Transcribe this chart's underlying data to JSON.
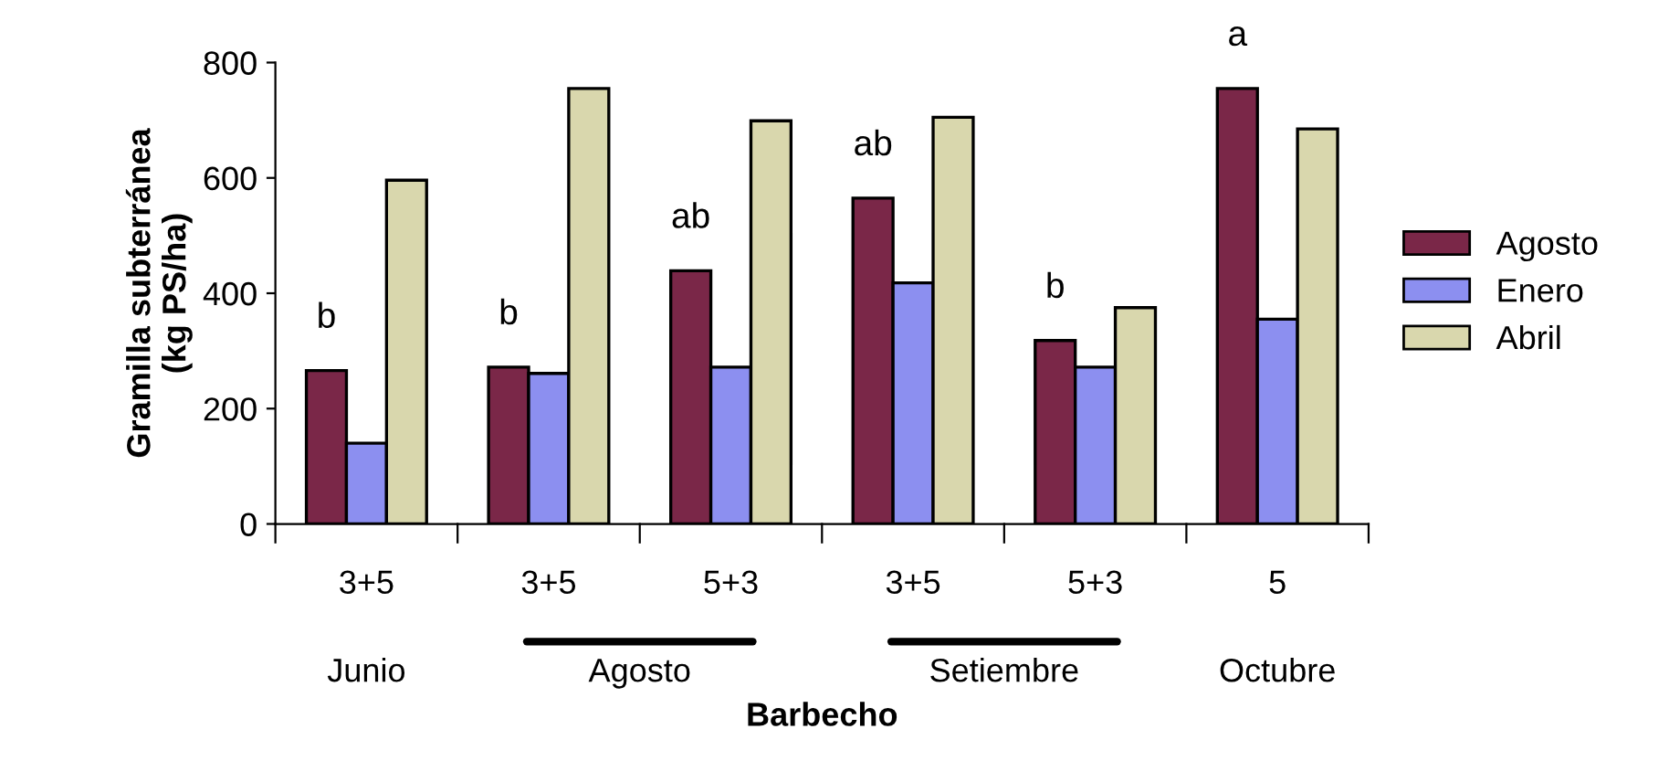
{
  "chart_data": {
    "type": "bar",
    "xlabel": "Barbecho",
    "ylabel": "Gramilla subterránea\n(kg PS/ha)",
    "categories": [
      "3+5",
      "3+5",
      "5+3",
      "3+5",
      "5+3",
      "5"
    ],
    "series": [
      {
        "name": "Agosto",
        "color": "#7a2748",
        "values": [
          266,
          272,
          439,
          565,
          318,
          755
        ]
      },
      {
        "name": "Enero",
        "color": "#8c8ff0",
        "values": [
          140,
          261,
          272,
          418,
          272,
          355
        ]
      },
      {
        "name": "Abril",
        "color": "#d9d7ad",
        "values": [
          596,
          755,
          699,
          705,
          375,
          685
        ]
      }
    ],
    "ylim": [
      0,
      800
    ],
    "yticks": [
      0,
      200,
      400,
      600,
      800
    ],
    "grid": false,
    "legend": "right",
    "annotations": [
      "b",
      "b",
      "ab",
      "ab",
      "b",
      "a",
      "Junio",
      "Agosto",
      "Setiembre",
      "Octubre"
    ]
  }
}
